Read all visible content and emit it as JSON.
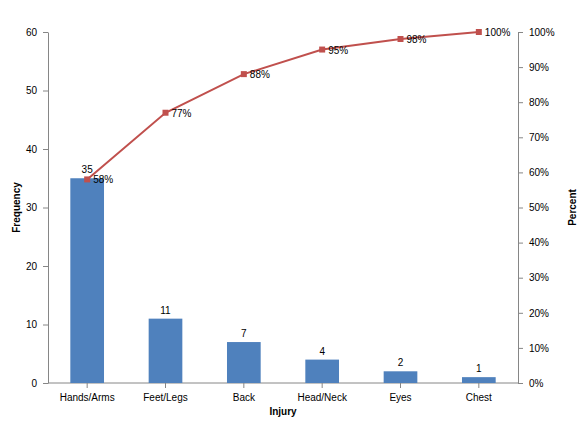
{
  "chart_data": {
    "type": "bar",
    "x_label": "Injury",
    "y_label": "Frequency",
    "y2_label": "Percent",
    "categories": [
      "Hands/Arms",
      "Feet/Legs",
      "Back",
      "Head/Neck",
      "Eyes",
      "Chest"
    ],
    "series": [
      {
        "type": "bar",
        "color": "#4f81bd",
        "values": [
          35,
          11,
          7,
          4,
          2,
          1
        ]
      },
      {
        "type": "line",
        "axis": "y2",
        "color": "#c0504d",
        "marker": "square",
        "line_style": "solid",
        "values": [
          58,
          77,
          88,
          95,
          98,
          100
        ],
        "value_labels": [
          "58%",
          "77%",
          "88%",
          "95%",
          "98%",
          "100%"
        ]
      }
    ],
    "ylim": [
      0,
      60
    ],
    "yticks": [
      0,
      10,
      20,
      30,
      40,
      50,
      60
    ],
    "y2lim": [
      0,
      100
    ],
    "y2ticks": [
      {
        "value": 0,
        "label": "0%"
      },
      {
        "value": 10,
        "label": "10%"
      },
      {
        "value": 20,
        "label": "20%"
      },
      {
        "value": 30,
        "label": "30%"
      },
      {
        "value": 40,
        "label": "40%"
      },
      {
        "value": 50,
        "label": "50%"
      },
      {
        "value": 60,
        "label": "60%"
      },
      {
        "value": 70,
        "label": "70%"
      },
      {
        "value": 80,
        "label": "80%"
      },
      {
        "value": 90,
        "label": "90%"
      },
      {
        "value": 100,
        "label": "100%"
      }
    ],
    "grid": false,
    "data_labels": true
  }
}
